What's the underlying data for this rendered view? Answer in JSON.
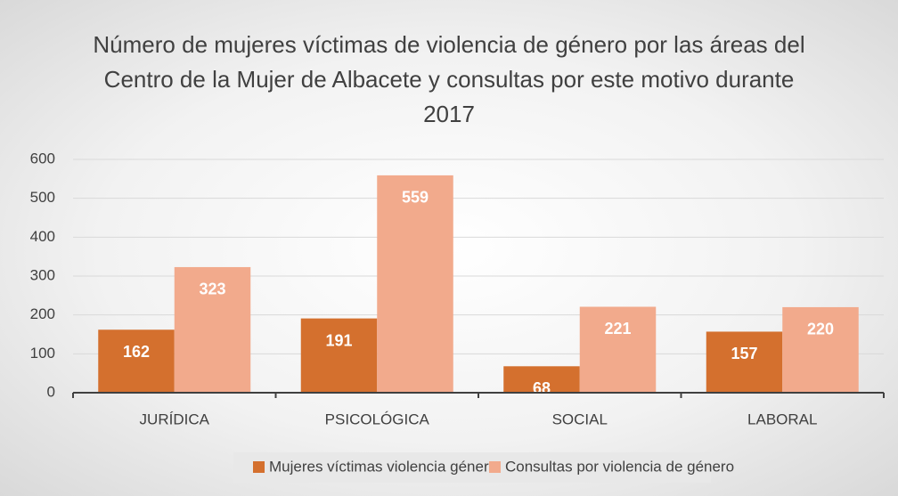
{
  "chart_data": {
    "type": "bar",
    "title": "Número de mujeres víctimas de violencia de género por las áreas del Centro de la Mujer de Albacete y consultas por este motivo durante 2017",
    "categories": [
      "JURÍDICA",
      "PSICOLÓGICA",
      "SOCIAL",
      "LABORAL"
    ],
    "series": [
      {
        "name": "Mujeres víctimas violencia género",
        "color": "#d4702e",
        "values": [
          162,
          191,
          68,
          157
        ]
      },
      {
        "name": "Consultas por violencia de género",
        "color": "#f2aa8c",
        "values": [
          323,
          559,
          221,
          220
        ]
      }
    ],
    "ylim": [
      0,
      600
    ],
    "yticks": [
      0,
      100,
      200,
      300,
      400,
      500,
      600
    ],
    "grid": true,
    "legend": "bottom"
  }
}
